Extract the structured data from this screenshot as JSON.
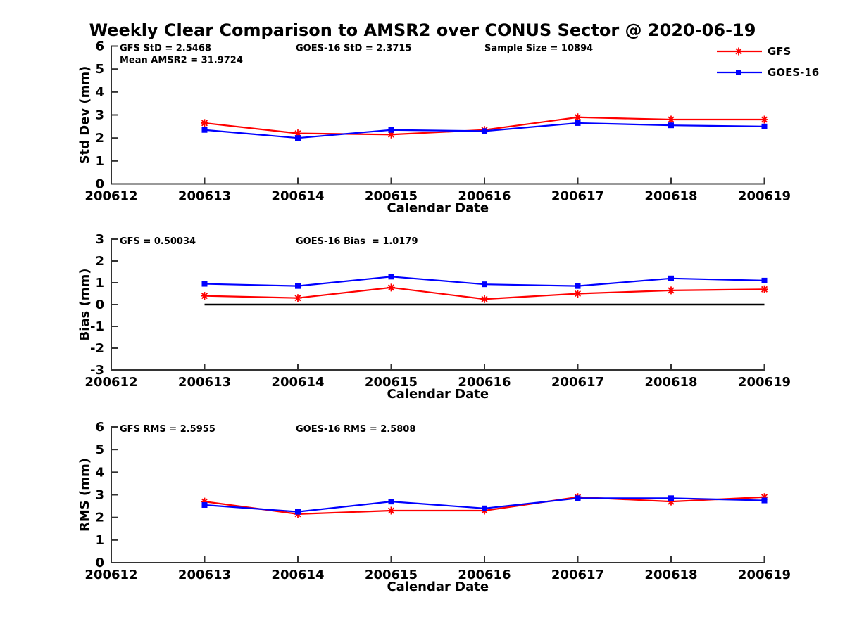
{
  "title": "Weekly Clear Comparison to AMSR2 over CONUS Sector @ 2020-06-19",
  "colors": {
    "gfs": "#ff0000",
    "goes16": "#0000ff",
    "axis": "#333333",
    "text": "#000000",
    "zero_line": "#000000",
    "background": "#ffffff"
  },
  "legend": {
    "items": [
      {
        "label": "GFS",
        "color": "#ff0000",
        "marker": "star"
      },
      {
        "label": "GOES-16",
        "color": "#0000ff",
        "marker": "square"
      }
    ]
  },
  "chart_data": [
    {
      "id": "std-dev",
      "type": "line",
      "title": "",
      "xlabel": "Calendar Date",
      "ylabel": "Std Dev (mm)",
      "ylim": [
        0,
        6
      ],
      "yticks": [
        0,
        1,
        2,
        3,
        4,
        5,
        6
      ],
      "xticks": [
        "200612",
        "200613",
        "200614",
        "200615",
        "200616",
        "200617",
        "200618",
        "200619"
      ],
      "x": [
        "200613",
        "200614",
        "200615",
        "200616",
        "200617",
        "200618",
        "200619"
      ],
      "series": [
        {
          "name": "GFS",
          "color": "#ff0000",
          "marker": "star",
          "values": [
            2.65,
            2.2,
            2.15,
            2.35,
            2.9,
            2.8,
            2.8
          ]
        },
        {
          "name": "GOES-16",
          "color": "#0000ff",
          "marker": "square",
          "values": [
            2.35,
            2.0,
            2.35,
            2.3,
            2.65,
            2.55,
            2.5
          ]
        }
      ],
      "annotations": [
        {
          "text": "GFS StD = 2.5468",
          "col": 0,
          "row": 0
        },
        {
          "text": "GOES-16 StD = 2.3715",
          "col": 1,
          "row": 0
        },
        {
          "text": "Sample Size = 10894",
          "col": 2,
          "row": 0
        },
        {
          "text": "Mean AMSR2 = 31.9724",
          "col": 0,
          "row": 1
        }
      ],
      "zero_line": false,
      "grid": false,
      "legend_position": "top-right"
    },
    {
      "id": "bias",
      "type": "line",
      "title": "",
      "xlabel": "Calendar Date",
      "ylabel": "Bias (mm)",
      "ylim": [
        -3,
        3
      ],
      "yticks": [
        -3,
        -2,
        -1,
        0,
        1,
        2,
        3
      ],
      "xticks": [
        "200612",
        "200613",
        "200614",
        "200615",
        "200616",
        "200617",
        "200618",
        "200619"
      ],
      "x": [
        "200613",
        "200614",
        "200615",
        "200616",
        "200617",
        "200618",
        "200619"
      ],
      "series": [
        {
          "name": "GFS",
          "color": "#ff0000",
          "marker": "star",
          "values": [
            0.4,
            0.3,
            0.78,
            0.25,
            0.5,
            0.65,
            0.7
          ]
        },
        {
          "name": "GOES-16",
          "color": "#0000ff",
          "marker": "square",
          "values": [
            0.95,
            0.85,
            1.28,
            0.93,
            0.85,
            1.2,
            1.1
          ]
        }
      ],
      "annotations": [
        {
          "text": "GFS = 0.50034",
          "col": 0,
          "row": 0
        },
        {
          "text": "GOES-16 Bias  = 1.0179",
          "col": 1,
          "row": 0
        }
      ],
      "zero_line": true,
      "grid": false
    },
    {
      "id": "rms",
      "type": "line",
      "title": "",
      "xlabel": "Calendar Date",
      "ylabel": "RMS (mm)",
      "ylim": [
        0,
        6
      ],
      "yticks": [
        0,
        1,
        2,
        3,
        4,
        5,
        6
      ],
      "xticks": [
        "200612",
        "200613",
        "200614",
        "200615",
        "200616",
        "200617",
        "200618",
        "200619"
      ],
      "x": [
        "200613",
        "200614",
        "200615",
        "200616",
        "200617",
        "200618",
        "200619"
      ],
      "series": [
        {
          "name": "GFS",
          "color": "#ff0000",
          "marker": "star",
          "values": [
            2.7,
            2.15,
            2.3,
            2.3,
            2.9,
            2.7,
            2.9
          ]
        },
        {
          "name": "GOES-16",
          "color": "#0000ff",
          "marker": "square",
          "values": [
            2.55,
            2.25,
            2.7,
            2.4,
            2.85,
            2.85,
            2.75
          ]
        }
      ],
      "annotations": [
        {
          "text": "GFS RMS = 2.5955",
          "col": 0,
          "row": 0
        },
        {
          "text": "GOES-16 RMS = 2.5808",
          "col": 1,
          "row": 0
        }
      ],
      "zero_line": false,
      "grid": false
    }
  ]
}
